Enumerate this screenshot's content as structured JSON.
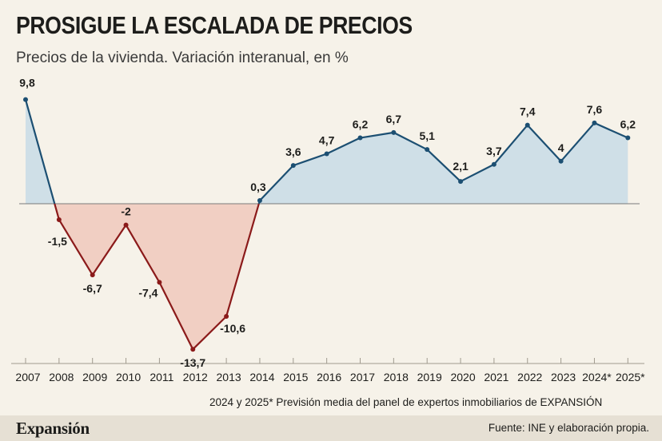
{
  "header": {
    "title": "PROSIGUE LA ESCALADA DE PRECIOS",
    "subtitle": "Precios de la vivienda. Variación interanual, en %"
  },
  "note": "2024 y 2025* Previsión media del panel de expertos inmobiliarios de EXPANSIÓN",
  "footer": {
    "logo": "Expansión",
    "source": "Fuente: INE y elaboración propia."
  },
  "colors": {
    "positive_line": "#1c4f72",
    "positive_fill": "#cfdfe7",
    "negative_line": "#8b1a1a",
    "negative_fill": "#f1cfc3",
    "axis": "#7a7a7a",
    "background": "#f6f2e9"
  },
  "chart_data": {
    "type": "line",
    "title": "PROSIGUE LA ESCALADA DE PRECIOS",
    "subtitle": "Precios de la vivienda. Variación interanual, en %",
    "categories": [
      "2007",
      "2008",
      "2009",
      "2010",
      "2011",
      "2012",
      "2013",
      "2014",
      "2015",
      "2016",
      "2017",
      "2018",
      "2019",
      "2020",
      "2021",
      "2022",
      "2023",
      "2024*",
      "2025*"
    ],
    "values": [
      9.8,
      -1.5,
      -6.7,
      -2,
      -7.4,
      -13.7,
      -10.6,
      0.3,
      3.6,
      4.7,
      6.2,
      6.7,
      5.1,
      2.1,
      3.7,
      7.4,
      4,
      7.6,
      6.2
    ],
    "data_labels": [
      "9,8",
      "-1,5",
      "-6,7",
      "-2",
      "-7,4",
      "-13,7",
      "-10,6",
      "0,3",
      "3,6",
      "4,7",
      "6,2",
      "6,7",
      "5,1",
      "2,1",
      "3,7",
      "7,4",
      "4",
      "7,6",
      "6,2"
    ],
    "ylim": [
      -15,
      10.5
    ],
    "grid": false,
    "legend": "none"
  }
}
